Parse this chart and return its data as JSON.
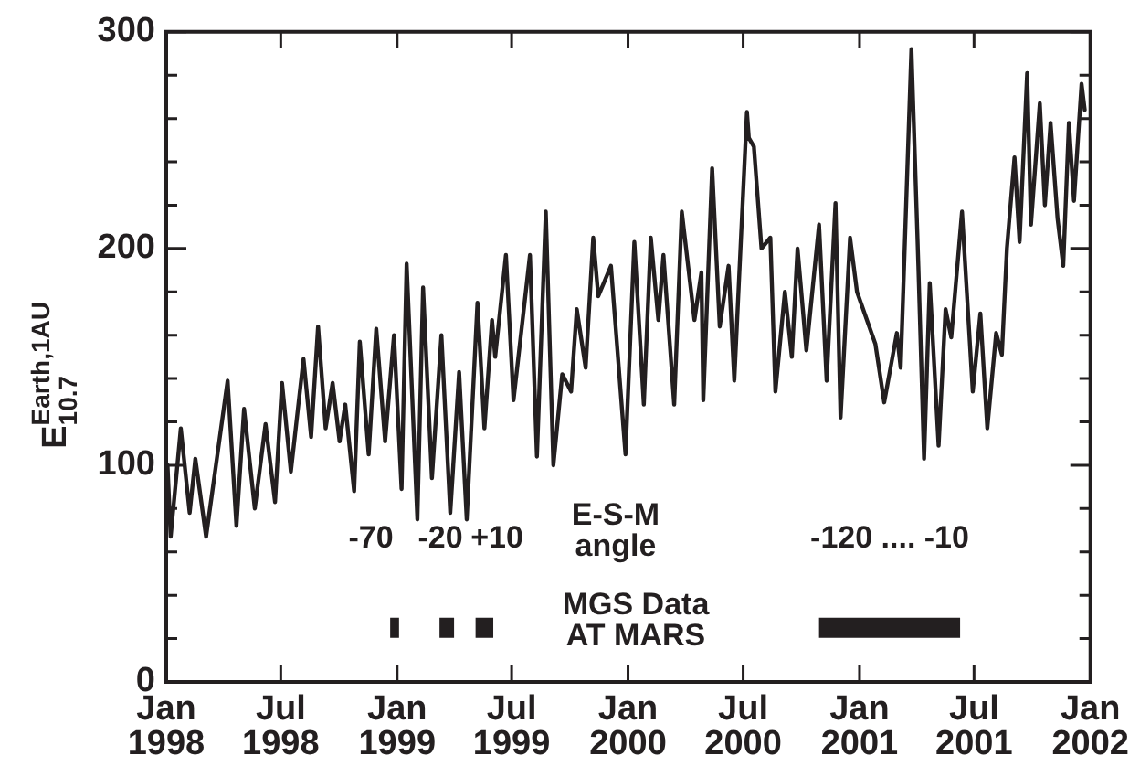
{
  "chart_data": {
    "type": "line",
    "ylabel": "E$_{10.7}$$^{Earth,1AU}$",
    "xlim": [
      "1998-01",
      "2002-01"
    ],
    "xticks": [
      {
        "value": "1998-01",
        "label": "Jan\n1998"
      },
      {
        "value": "1998-07",
        "label": "Jul\n1998"
      },
      {
        "value": "1999-01",
        "label": "Jan\n1999"
      },
      {
        "value": "1999-07",
        "label": "Jul\n1999"
      },
      {
        "value": "2000-01",
        "label": "Jan\n2000"
      },
      {
        "value": "2000-07",
        "label": "Jul\n2000"
      },
      {
        "value": "2001-01",
        "label": "Jan\n2001"
      },
      {
        "value": "2001-07",
        "label": "Jul\n2001"
      },
      {
        "value": "2002-01",
        "label": "Jan\n2002"
      }
    ],
    "ylim": [
      0,
      300
    ],
    "yticks": [
      0,
      {
        "value": 20,
        "label": null
      },
      {
        "value": 40,
        "label": null
      },
      {
        "value": 60,
        "label": null
      },
      {
        "value": 80,
        "label": null
      },
      100,
      {
        "value": 120,
        "label": null
      },
      {
        "value": 140,
        "label": null
      },
      {
        "value": 160,
        "label": null
      },
      {
        "value": 180,
        "label": null
      },
      200,
      {
        "value": 220,
        "label": null
      },
      {
        "value": 240,
        "label": null
      },
      {
        "value": 260,
        "label": null
      },
      {
        "value": 280,
        "label": null
      },
      300
    ],
    "line_style": "solid",
    "marker": "none",
    "series": [
      {
        "color": "#231f20",
        "x": [
          "1998-01-03",
          "1998-01-08",
          "1998-01-24",
          "1998-02-07",
          "1998-02-16",
          "1998-03-05",
          "1998-04-08",
          "1998-04-22",
          "1998-05-04",
          "1998-05-21",
          "1998-06-07",
          "1998-06-22",
          "1998-07-03",
          "1998-07-17",
          "1998-08-06",
          "1998-08-18",
          "1998-08-29",
          "1998-09-10",
          "1998-09-21",
          "1998-10-02",
          "1998-10-11",
          "1998-10-25",
          "1998-11-03",
          "1998-11-17",
          "1998-11-29",
          "1998-12-13",
          "1998-12-27",
          "1999-01-08",
          "1999-01-16",
          "1999-02-02",
          "1999-02-11",
          "1999-02-25",
          "1999-03-12",
          "1999-03-26",
          "1999-04-09",
          "1999-04-21",
          "1999-05-08",
          "1999-05-19",
          "1999-05-31",
          "1999-06-05",
          "1999-06-22",
          "1999-07-04",
          "1999-07-30",
          "1999-08-10",
          "1999-08-24",
          "1999-09-05",
          "1999-09-19",
          "1999-10-03",
          "1999-10-12",
          "1999-10-26",
          "1999-11-07",
          "1999-11-15",
          "1999-12-05",
          "1999-12-28",
          "2000-01-11",
          "2000-01-26",
          "2000-02-06",
          "2000-02-18",
          "2000-02-26",
          "2000-03-14",
          "2000-03-26",
          "2000-04-15",
          "2000-04-26",
          "2000-04-29",
          "2000-05-13",
          "2000-05-25",
          "2000-06-08",
          "2000-06-17",
          "2000-07-07",
          "2000-07-10",
          "2000-07-18",
          "2000-07-30",
          "2000-08-13",
          "2000-08-21",
          "2000-09-05",
          "2000-09-16",
          "2000-09-25",
          "2000-10-09",
          "2000-10-29",
          "2000-11-10",
          "2000-11-24",
          "2000-12-02",
          "2000-12-17",
          "2000-12-28",
          "2001-01-26",
          "2001-02-09",
          "2001-03-01",
          "2001-03-07",
          "2001-03-24",
          "2001-04-04",
          "2001-04-13",
          "2001-04-22",
          "2001-05-06",
          "2001-05-17",
          "2001-05-26",
          "2001-06-12",
          "2001-06-29",
          "2001-07-11",
          "2001-07-22",
          "2001-08-05",
          "2001-08-14",
          "2001-08-22",
          "2001-09-03",
          "2001-09-11",
          "2001-09-23",
          "2001-09-29",
          "2001-10-13",
          "2001-10-21",
          "2001-10-30",
          "2001-11-10",
          "2001-11-19",
          "2001-11-28",
          "2001-12-06",
          "2001-12-18",
          "2001-12-23"
        ],
        "values": [
          100,
          67,
          117,
          78,
          103,
          67,
          139,
          72,
          126,
          80,
          119,
          83,
          138,
          97,
          149,
          113,
          164,
          117,
          138,
          111,
          128,
          88,
          157,
          105,
          163,
          111,
          160,
          89,
          193,
          75,
          182,
          94,
          160,
          78,
          143,
          75,
          175,
          117,
          167,
          150,
          197,
          130,
          197,
          104,
          217,
          100,
          142,
          134,
          172,
          145,
          205,
          178,
          192,
          105,
          203,
          128,
          205,
          167,
          197,
          128,
          217,
          167,
          189,
          130,
          237,
          164,
          192,
          139,
          263,
          251,
          247,
          200,
          205,
          134,
          180,
          150,
          200,
          153,
          211,
          139,
          221,
          122,
          205,
          180,
          156,
          129,
          161,
          145,
          292,
          192,
          103,
          184,
          109,
          172,
          159,
          217,
          134,
          170,
          117,
          161,
          151,
          200,
          242,
          203,
          281,
          211,
          267,
          220,
          258,
          214,
          192,
          258,
          222,
          276,
          264
        ]
      },
      {
        "color": "#231f20",
        "x": [
          "1998-12-21",
          "1999-01-04",
          "1999-02-01",
          "1999-03-09",
          "1999-04-01",
          "1999-04-15",
          "1999-05-05",
          "1999-06-02",
          "2000-01-01",
          "2000-10-29",
          "2001-06-09"
        ],
        "values": [
          25,
          25,
          null,
          25,
          25,
          null,
          25,
          25,
          null,
          25,
          25
        ]
      }
    ],
    "annotations": [
      "-70",
      "-20",
      "+10",
      "E-S-M\nangle",
      "-120 .... -10",
      "MGS Data\nAT MARS"
    ]
  }
}
